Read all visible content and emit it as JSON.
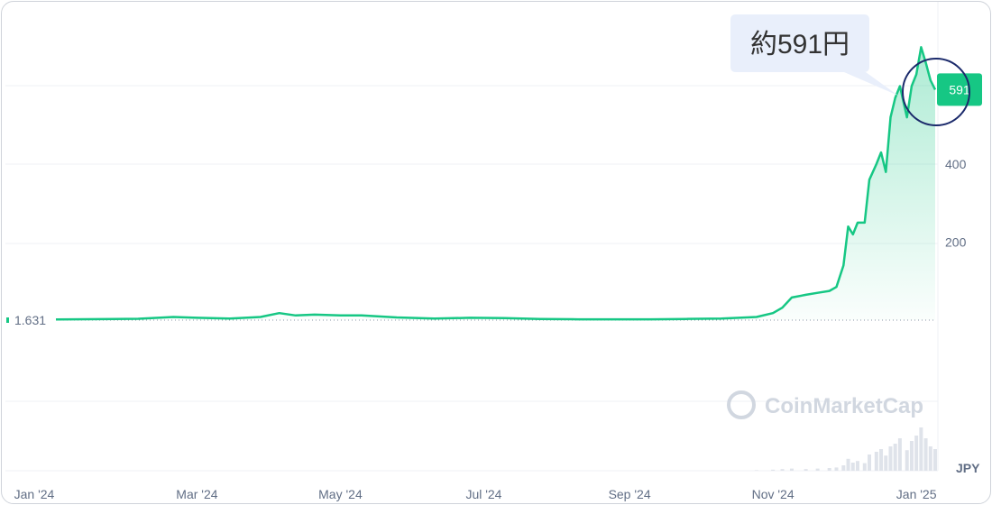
{
  "chart_data": {
    "type": "area",
    "currency": "JPY",
    "x_ticks": [
      "Jan '24",
      "Mar '24",
      "May '24",
      "Jul '24",
      "Sep '24",
      "Nov '24",
      "Jan '25"
    ],
    "y_ticks": [
      200,
      400
    ],
    "ylim": [
      0,
      700
    ],
    "start_value": "1.631",
    "current_value": "591",
    "callout": "約591円",
    "watermark": "CoinMarketCap",
    "line_color": "#16c784",
    "series": [
      {
        "x": [
          "2024-01-01",
          "2024-01-20",
          "2024-02-05",
          "2024-02-20",
          "2024-03-01",
          "2024-03-15",
          "2024-03-28",
          "2024-04-05",
          "2024-04-12",
          "2024-04-20",
          "2024-05-01",
          "2024-05-10",
          "2024-05-25",
          "2024-06-10",
          "2024-06-25",
          "2024-07-10",
          "2024-07-25",
          "2024-08-10",
          "2024-08-25",
          "2024-09-10",
          "2024-09-25",
          "2024-10-10",
          "2024-10-25",
          "2024-11-01",
          "2024-11-05",
          "2024-11-09",
          "2024-11-15",
          "2024-11-20",
          "2024-11-25",
          "2024-11-28",
          "2024-12-01",
          "2024-12-03",
          "2024-12-05",
          "2024-12-07",
          "2024-12-10",
          "2024-12-12",
          "2024-12-15",
          "2024-12-17",
          "2024-12-19",
          "2024-12-21",
          "2024-12-23",
          "2024-12-25",
          "2024-12-28",
          "2024-12-30",
          "2025-01-01",
          "2025-01-03",
          "2025-01-05",
          "2025-01-07",
          "2025-01-09"
        ],
        "values": [
          1.6,
          2.5,
          3.5,
          8,
          6,
          4,
          8,
          18,
          12,
          14,
          12,
          12,
          7,
          4,
          6,
          5,
          3,
          2,
          2,
          2,
          3,
          4,
          8,
          18,
          32,
          58,
          65,
          70,
          75,
          85,
          140,
          240,
          220,
          250,
          250,
          360,
          400,
          430,
          380,
          520,
          570,
          600,
          520,
          600,
          630,
          700,
          660,
          615,
          591
        ]
      }
    ],
    "volume": [
      0,
      0,
      0,
      0,
      0,
      0,
      0,
      0,
      0,
      0,
      0,
      0,
      0,
      0,
      0,
      0,
      0,
      0,
      0,
      0,
      0,
      0,
      1,
      2,
      3,
      4,
      3,
      4,
      5,
      6,
      10,
      22,
      15,
      18,
      14,
      30,
      35,
      40,
      28,
      45,
      50,
      60,
      38,
      55,
      65,
      80,
      60,
      45,
      40
    ]
  }
}
